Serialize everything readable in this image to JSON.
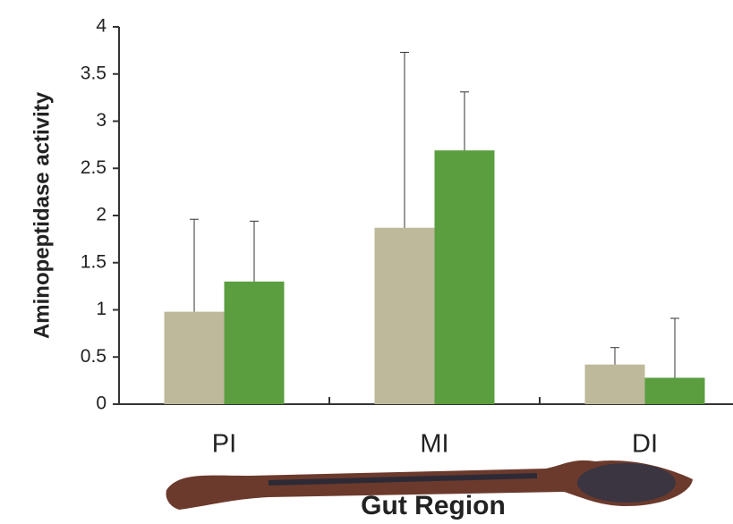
{
  "chart_data": {
    "type": "bar",
    "x_label": "Gut Region",
    "y_label": "Aminopeptidase activity",
    "categories": [
      "PI",
      "MI",
      "DI"
    ],
    "series": [
      {
        "color": "#bdb99a",
        "values": [
          0.98,
          1.87,
          0.42
        ],
        "errors": [
          0.98,
          1.86,
          0.18
        ]
      },
      {
        "color": "#5a9e3f",
        "values": [
          1.3,
          2.69,
          0.28
        ],
        "errors": [
          0.64,
          0.62,
          0.63
        ]
      }
    ],
    "ylim": [
      0,
      4
    ],
    "yticks": [
      0,
      0.5,
      1,
      1.5,
      2,
      2.5,
      3,
      3.5,
      4
    ],
    "grid": false
  }
}
